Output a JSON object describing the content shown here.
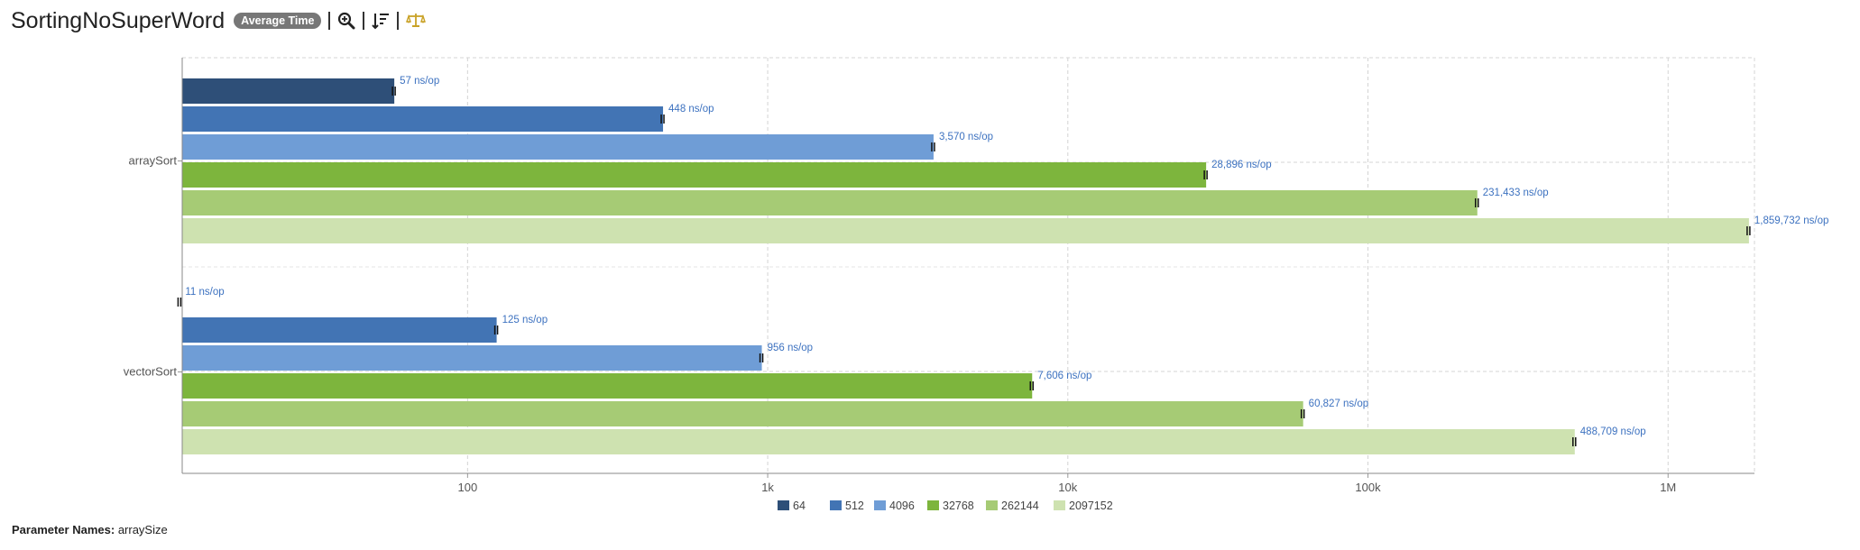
{
  "header": {
    "title": "SortingNoSuperWord",
    "mode_badge": "Average Time",
    "icons": [
      "zoom-icon",
      "sort-icon",
      "balance-icon"
    ]
  },
  "footer": {
    "param_label": "Parameter Names:",
    "param_value": "arraySize"
  },
  "colors": {
    "64": "#2e4f78",
    "512": "#4274b4",
    "4096": "#6f9dd6",
    "32768": "#7db53d",
    "262144": "#a6cb75",
    "2097152": "#cee2b0",
    "label": "#3d72c0",
    "icon_accent": "#c9a227"
  },
  "chart_data": {
    "type": "bar",
    "orientation": "horizontal",
    "x_scale": "log",
    "categories": [
      "arraySort",
      "vectorSort"
    ],
    "series": [
      {
        "name": "64",
        "values": [
          57,
          11
        ],
        "labels": [
          "57 ns/op",
          "11 ns/op"
        ]
      },
      {
        "name": "512",
        "values": [
          448,
          125
        ],
        "labels": [
          "448 ns/op",
          "125 ns/op"
        ]
      },
      {
        "name": "4096",
        "values": [
          3570,
          956
        ],
        "labels": [
          "3,570 ns/op",
          "956 ns/op"
        ]
      },
      {
        "name": "32768",
        "values": [
          28896,
          7606
        ],
        "labels": [
          "28,896 ns/op",
          "7,606 ns/op"
        ]
      },
      {
        "name": "262144",
        "values": [
          231433,
          60827
        ],
        "labels": [
          "231,433 ns/op",
          "60,827 ns/op"
        ]
      },
      {
        "name": "2097152",
        "values": [
          1859732,
          488709
        ],
        "labels": [
          "1,859,732 ns/op",
          "488,709 ns/op"
        ]
      }
    ],
    "x_ticks": [
      {
        "value": 100,
        "label": "100"
      },
      {
        "value": 1000,
        "label": "1k"
      },
      {
        "value": 10000,
        "label": "10k"
      },
      {
        "value": 100000,
        "label": "100k"
      },
      {
        "value": 1000000,
        "label": "1M"
      }
    ],
    "xlim": [
      11,
      1900000
    ],
    "grid": true,
    "legend_position": "bottom-center",
    "error_bars": true
  }
}
